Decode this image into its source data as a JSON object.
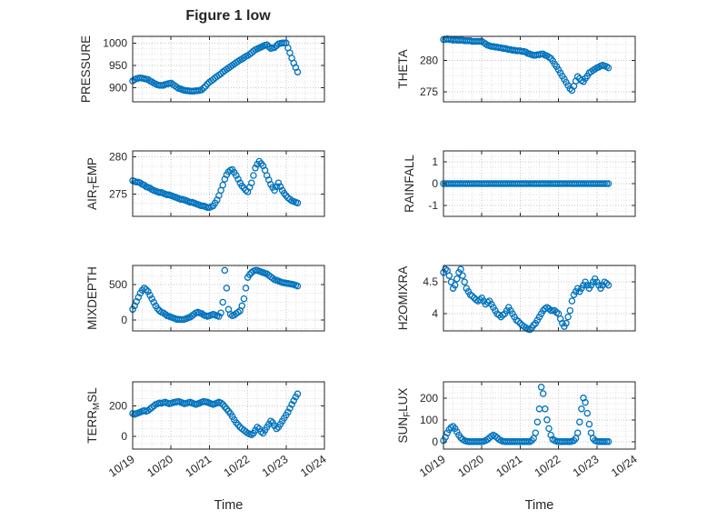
{
  "title": "Figure 1 low",
  "chart_data": {
    "type": "scatter",
    "marker": {
      "shape": "open-circle",
      "color": "#0072BD"
    },
    "x_axis": {
      "label": "Time",
      "xlim": [
        0,
        5
      ],
      "tick_values": [
        0,
        1,
        2,
        3,
        4,
        5
      ],
      "tick_labels": [
        "10/19",
        "10/20",
        "10/21",
        "10/22",
        "10/23",
        "10/24"
      ],
      "x_start": 0,
      "x_step_days": 0.05,
      "points_per_series": 87
    },
    "charts": [
      {
        "name": "pressure",
        "ylabel_text": "PRESSURE",
        "ylabel_parts": [
          {
            "text": "PRESSURE",
            "sub": false
          }
        ],
        "yticks": [
          900,
          950,
          1000
        ],
        "ytick_labels": [
          "900",
          "950",
          "1000"
        ],
        "ylim": [
          868,
          1015
        ],
        "y": [
          915,
          918,
          920,
          921,
          922,
          921,
          920,
          919,
          918,
          915,
          913,
          910,
          908,
          906,
          905,
          905,
          905,
          907,
          908,
          909,
          910,
          907,
          904,
          901,
          898,
          897,
          895,
          894,
          893,
          893,
          892,
          892,
          892,
          893,
          893,
          894,
          895,
          899,
          903,
          908,
          912,
          915,
          918,
          922,
          925,
          928,
          931,
          935,
          938,
          941,
          944,
          947,
          950,
          953,
          956,
          959,
          962,
          964,
          967,
          970,
          972,
          975,
          978,
          982,
          985,
          987,
          989,
          991,
          993,
          995,
          996,
          992,
          988,
          989,
          990,
          994,
          998,
          999,
          1000,
          1000,
          1000,
          989,
          978,
          966,
          955,
          945,
          935
        ]
      },
      {
        "name": "theta",
        "ylabel_text": "THETA",
        "ylabel_parts": [
          {
            "text": "THETA",
            "sub": false
          }
        ],
        "yticks": [
          275,
          280
        ],
        "ytick_labels": [
          "275",
          "280"
        ],
        "ylim": [
          273.4,
          283.8
        ],
        "y": [
          283.3,
          283.3,
          283.4,
          283.3,
          283.3,
          283.2,
          283.3,
          283.2,
          283.2,
          283.2,
          283.2,
          283.1,
          283.1,
          283.1,
          283.1,
          283.0,
          283.0,
          283.0,
          283.0,
          283.0,
          283.0,
          282.8,
          282.6,
          282.4,
          282.3,
          282.2,
          282.2,
          282.1,
          282.1,
          282.0,
          282.0,
          281.9,
          281.9,
          281.8,
          281.7,
          281.7,
          281.6,
          281.6,
          281.5,
          281.5,
          281.5,
          281.4,
          281.4,
          281.3,
          281.1,
          281.0,
          280.9,
          280.8,
          280.8,
          280.9,
          280.9,
          281.0,
          281.0,
          280.8,
          280.7,
          280.5,
          280.3,
          279.9,
          279.4,
          279.0,
          278.5,
          278.0,
          277.5,
          277.0,
          276.5,
          276.0,
          275.5,
          275.2,
          275.9,
          276.7,
          277.4,
          277.1,
          276.8,
          276.6,
          277.1,
          277.5,
          278.0,
          278.2,
          278.4,
          278.6,
          278.8,
          278.9,
          279.1,
          279.2,
          279.1,
          279.0,
          278.8
        ]
      },
      {
        "name": "air_temp",
        "ylabel_text": "AIR_TEMP",
        "ylabel_parts": [
          {
            "text": "AIR",
            "sub": false
          },
          {
            "text": "T",
            "sub": true
          },
          {
            "text": "EMP",
            "sub": false
          }
        ],
        "yticks": [
          275,
          280
        ],
        "ytick_labels": [
          "275",
          "280"
        ],
        "ylim": [
          272,
          280.8
        ],
        "y": [
          276.8,
          276.7,
          276.6,
          276.6,
          276.5,
          276.3,
          276.2,
          276.0,
          275.9,
          275.8,
          275.6,
          275.5,
          275.4,
          275.3,
          275.2,
          275.2,
          275.1,
          275.0,
          274.9,
          274.9,
          274.8,
          274.7,
          274.6,
          274.5,
          274.4,
          274.3,
          274.3,
          274.2,
          274.1,
          274.0,
          273.9,
          273.9,
          273.8,
          273.7,
          273.6,
          273.5,
          273.4,
          273.4,
          273.3,
          273.2,
          273.2,
          273.3,
          273.4,
          273.8,
          274.2,
          274.8,
          275.5,
          276.2,
          277.0,
          277.6,
          278.0,
          278.2,
          278.3,
          277.9,
          277.5,
          277.0,
          276.5,
          276.1,
          275.8,
          275.5,
          275.3,
          275.9,
          276.5,
          277.5,
          278.5,
          279.0,
          279.4,
          279.1,
          278.8,
          278.2,
          277.5,
          276.9,
          276.3,
          275.9,
          275.5,
          276.0,
          276.5,
          276.0,
          275.5,
          275.1,
          274.8,
          274.5,
          274.3,
          274.1,
          274.0,
          273.9,
          273.8
        ]
      },
      {
        "name": "rainfall",
        "ylabel_text": "RAINFALL",
        "ylabel_parts": [
          {
            "text": "RAINFALL",
            "sub": false
          }
        ],
        "yticks": [
          -1,
          0,
          1
        ],
        "ytick_labels": [
          "-1",
          "0",
          "1"
        ],
        "ylim": [
          -1.5,
          1.5
        ],
        "y": [
          0,
          0,
          0,
          0,
          0,
          0,
          0,
          0,
          0,
          0,
          0,
          0,
          0,
          0,
          0,
          0,
          0,
          0,
          0,
          0,
          0,
          0,
          0,
          0,
          0,
          0,
          0,
          0,
          0,
          0,
          0,
          0,
          0,
          0,
          0,
          0,
          0,
          0,
          0,
          0,
          0,
          0,
          0,
          0,
          0,
          0,
          0,
          0,
          0,
          0,
          0,
          0,
          0,
          0,
          0,
          0,
          0,
          0,
          0,
          0,
          0,
          0,
          0,
          0,
          0,
          0,
          0,
          0,
          0,
          0,
          0,
          0,
          0,
          0,
          0,
          0,
          0,
          0,
          0,
          0,
          0,
          0,
          0,
          0,
          0,
          0,
          0
        ]
      },
      {
        "name": "mixdepth",
        "ylabel_text": "MIXDEPTH",
        "ylabel_parts": [
          {
            "text": "MIXDEPTH",
            "sub": false
          }
        ],
        "yticks": [
          0,
          500
        ],
        "ytick_labels": [
          "0",
          "500"
        ],
        "ylim": [
          -155,
          770
        ],
        "y": [
          150,
          200,
          260,
          320,
          380,
          420,
          450,
          430,
          400,
          350,
          300,
          250,
          200,
          160,
          130,
          110,
          100,
          80,
          60,
          50,
          40,
          30,
          20,
          10,
          10,
          5,
          5,
          10,
          20,
          30,
          40,
          60,
          80,
          100,
          110,
          100,
          90,
          70,
          60,
          50,
          60,
          70,
          80,
          70,
          60,
          50,
          100,
          250,
          700,
          450,
          150,
          80,
          60,
          70,
          90,
          110,
          130,
          200,
          300,
          450,
          600,
          640,
          670,
          690,
          700,
          700,
          690,
          680,
          670,
          660,
          650,
          630,
          610,
          590,
          570,
          560,
          550,
          540,
          530,
          525,
          520,
          515,
          510,
          505,
          500,
          490,
          480
        ]
      },
      {
        "name": "h2omixra",
        "ylabel_text": "H2OMIXRA",
        "ylabel_parts": [
          {
            "text": "H2OMIXRA",
            "sub": false
          }
        ],
        "yticks": [
          4,
          4.5
        ],
        "ytick_labels": [
          "4",
          "4.5"
        ],
        "ylim": [
          3.73,
          4.76
        ],
        "y": [
          4.65,
          4.7,
          4.68,
          4.6,
          4.5,
          4.4,
          4.45,
          4.55,
          4.65,
          4.7,
          4.6,
          4.5,
          4.4,
          4.35,
          4.3,
          4.28,
          4.25,
          4.22,
          4.2,
          4.22,
          4.25,
          4.2,
          4.15,
          4.18,
          4.2,
          4.15,
          4.1,
          4.05,
          4.0,
          3.98,
          3.95,
          3.98,
          4.0,
          4.05,
          4.1,
          4.05,
          4.0,
          3.95,
          3.9,
          3.88,
          3.85,
          3.82,
          3.8,
          3.78,
          3.76,
          3.75,
          3.78,
          3.82,
          3.85,
          3.9,
          3.95,
          4.0,
          4.05,
          4.08,
          4.1,
          4.08,
          4.05,
          4.05,
          4.05,
          4.02,
          4.0,
          3.92,
          3.85,
          3.8,
          3.85,
          3.95,
          4.05,
          4.2,
          4.3,
          4.35,
          4.4,
          4.35,
          4.4,
          4.45,
          4.5,
          4.45,
          4.4,
          4.45,
          4.5,
          4.55,
          4.5,
          4.45,
          4.4,
          4.45,
          4.5,
          4.48,
          4.45
        ]
      },
      {
        "name": "terr_msl",
        "ylabel_text": "TERR_MSL",
        "ylabel_parts": [
          {
            "text": "TERR",
            "sub": false
          },
          {
            "text": "M",
            "sub": true
          },
          {
            "text": "SL",
            "sub": false
          }
        ],
        "yticks": [
          0,
          200
        ],
        "ytick_labels": [
          "0",
          "200"
        ],
        "ylim": [
          -85,
          360
        ],
        "y": [
          150,
          145,
          150,
          155,
          160,
          165,
          170,
          165,
          170,
          180,
          190,
          200,
          210,
          215,
          220,
          218,
          222,
          225,
          220,
          215,
          218,
          222,
          225,
          228,
          230,
          225,
          220,
          215,
          218,
          222,
          225,
          220,
          215,
          210,
          215,
          220,
          225,
          230,
          228,
          225,
          220,
          215,
          210,
          215,
          220,
          225,
          220,
          210,
          195,
          180,
          165,
          150,
          130,
          110,
          90,
          75,
          60,
          50,
          40,
          30,
          20,
          15,
          10,
          20,
          40,
          60,
          50,
          30,
          20,
          40,
          60,
          80,
          100,
          90,
          70,
          50,
          60,
          80,
          100,
          120,
          140,
          160,
          185,
          210,
          235,
          260,
          280
        ]
      },
      {
        "name": "sun_flux",
        "ylabel_text": "SUN_FLUX",
        "ylabel_parts": [
          {
            "text": "SUN",
            "sub": false
          },
          {
            "text": "F",
            "sub": true
          },
          {
            "text": "LUX",
            "sub": false
          }
        ],
        "yticks": [
          0,
          100,
          200
        ],
        "ytick_labels": [
          "0",
          "100",
          "200"
        ],
        "ylim": [
          -34,
          274
        ],
        "y": [
          5,
          20,
          40,
          55,
          65,
          70,
          60,
          45,
          30,
          18,
          10,
          5,
          2,
          0,
          0,
          0,
          0,
          0,
          0,
          0,
          0,
          2,
          5,
          10,
          18,
          25,
          30,
          25,
          18,
          10,
          5,
          2,
          0,
          0,
          0,
          0,
          0,
          0,
          0,
          0,
          0,
          0,
          0,
          0,
          0,
          0,
          5,
          15,
          40,
          90,
          150,
          250,
          220,
          150,
          100,
          60,
          30,
          10,
          5,
          2,
          0,
          0,
          0,
          0,
          0,
          0,
          0,
          2,
          5,
          15,
          40,
          90,
          150,
          200,
          180,
          130,
          80,
          40,
          15,
          5,
          2,
          0,
          0,
          0,
          0,
          0,
          0
        ]
      }
    ]
  }
}
